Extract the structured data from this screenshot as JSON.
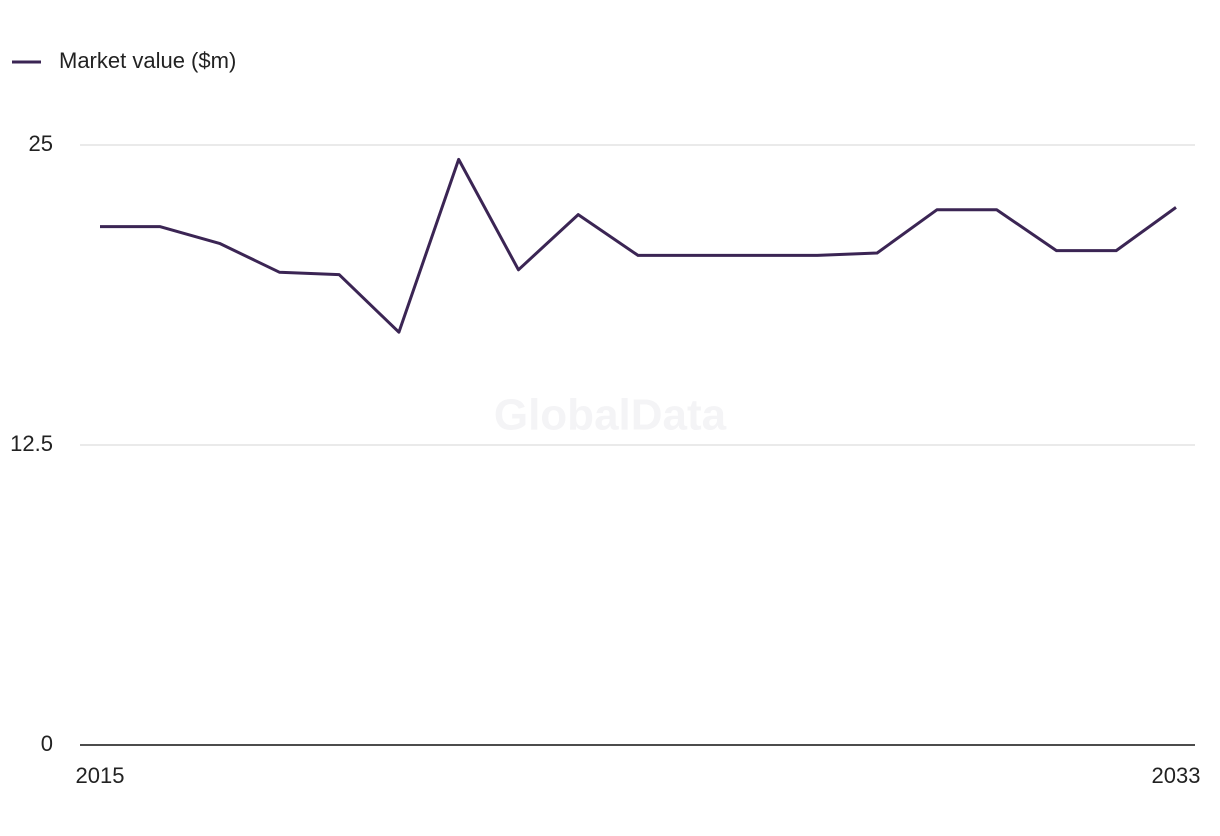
{
  "chart_data": {
    "type": "line",
    "watermark": "GlobalData",
    "categories": [
      "2015",
      null,
      null,
      null,
      null,
      null,
      null,
      null,
      null,
      null,
      null,
      null,
      null,
      null,
      null,
      null,
      null,
      null,
      "2033"
    ],
    "series": [
      {
        "name": "Market value ($m)",
        "color": "#3b2554",
        "values": [
          21.6,
          21.6,
          20.9,
          19.7,
          19.6,
          17.2,
          24.4,
          19.8,
          22.1,
          20.4,
          20.4,
          20.4,
          20.4,
          20.5,
          22.3,
          22.3,
          20.6,
          20.6,
          22.4
        ]
      }
    ],
    "ylim": [
      0,
      25
    ],
    "yticks": [
      0,
      12.5,
      25
    ],
    "grid": true
  }
}
